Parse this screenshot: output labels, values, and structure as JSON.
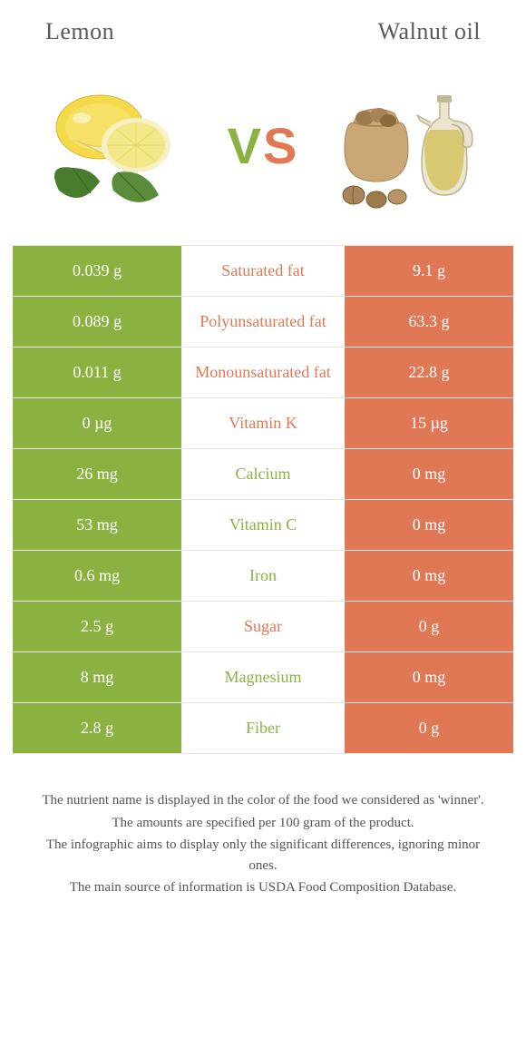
{
  "header": {
    "left_title": "Lemon",
    "right_title": "Walnut oil"
  },
  "vs": {
    "v": "V",
    "s": "S"
  },
  "colors": {
    "left": "#8bb241",
    "right": "#e07856",
    "row_border": "#e5e5e5",
    "title_text": "#595959"
  },
  "rows": [
    {
      "left": "0.039 g",
      "label": "Saturated fat",
      "right": "9.1 g",
      "winner": "right"
    },
    {
      "left": "0.089 g",
      "label": "Polyunsaturated fat",
      "right": "63.3 g",
      "winner": "right"
    },
    {
      "left": "0.011 g",
      "label": "Monounsaturated fat",
      "right": "22.8 g",
      "winner": "right"
    },
    {
      "left": "0 µg",
      "label": "Vitamin K",
      "right": "15 µg",
      "winner": "right"
    },
    {
      "left": "26 mg",
      "label": "Calcium",
      "right": "0 mg",
      "winner": "left"
    },
    {
      "left": "53 mg",
      "label": "Vitamin C",
      "right": "0 mg",
      "winner": "left"
    },
    {
      "left": "0.6 mg",
      "label": "Iron",
      "right": "0 mg",
      "winner": "left"
    },
    {
      "left": "2.5 g",
      "label": "Sugar",
      "right": "0 g",
      "winner": "right"
    },
    {
      "left": "8 mg",
      "label": "Magnesium",
      "right": "0 mg",
      "winner": "left"
    },
    {
      "left": "2.8 g",
      "label": "Fiber",
      "right": "0 g",
      "winner": "left"
    }
  ],
  "footer": {
    "line1": "The nutrient name is displayed in the color of the food we considered as 'winner'.",
    "line2": "The amounts are specified per 100 gram of the product.",
    "line3": "The infographic aims to display only the significant differences, ignoring minor ones.",
    "line4": "The main source of information is USDA Food Composition Database."
  }
}
